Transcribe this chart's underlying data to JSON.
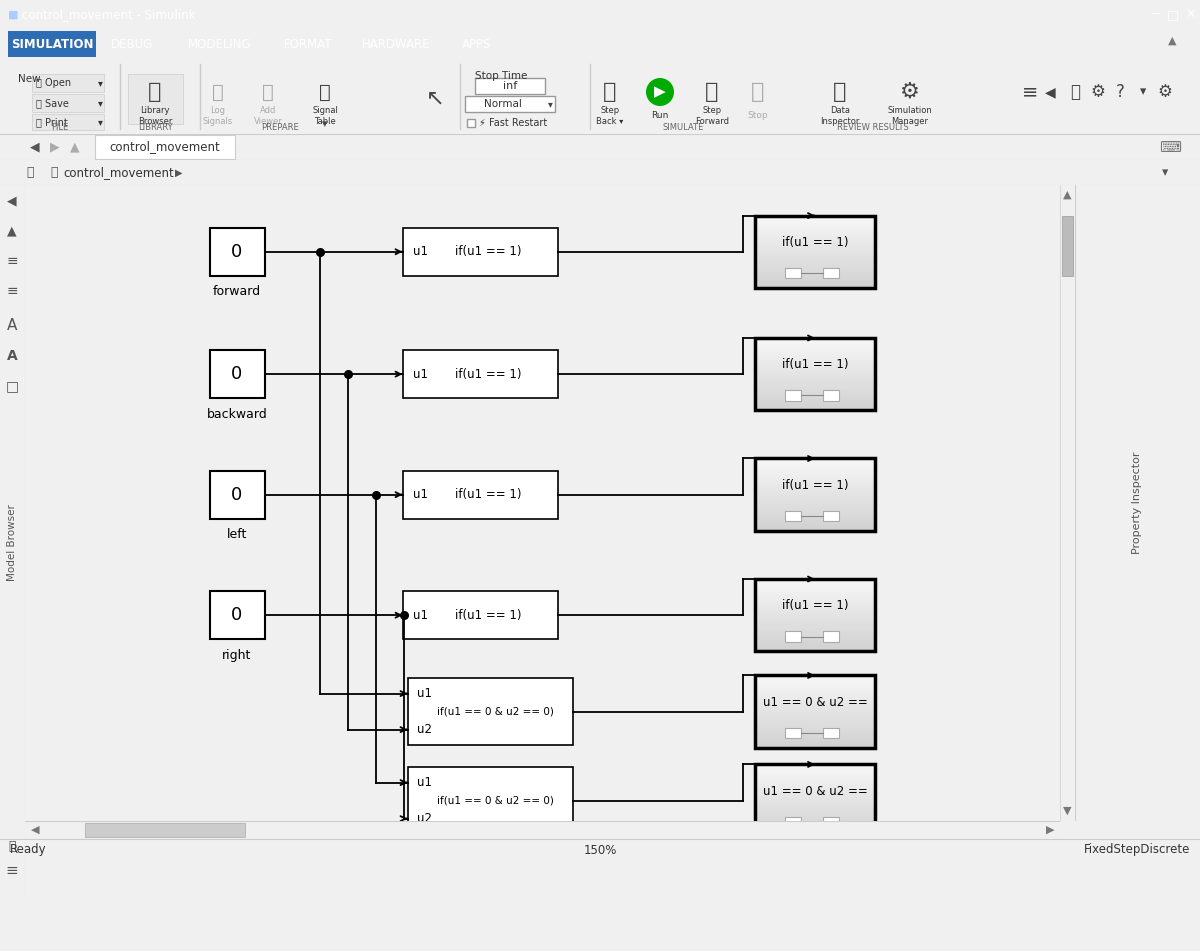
{
  "window_title": "control_movement - Simulink",
  "tab_items": [
    "SIMULATION",
    "DEBUG",
    "MODELING",
    "FORMAT",
    "HARDWARE",
    "APPS"
  ],
  "title_bar_bg": "#1e3a5f",
  "menu_bar_bg": "#1e4d8c",
  "toolbar_bg": "#f0f0f0",
  "diagram_bg": "#ffffff",
  "sidebar_bg": "#e8e8e8",
  "status_left": "Ready",
  "status_center": "150%",
  "status_right": "FixedStepDiscrete",
  "src_labels": [
    "forward",
    "backward",
    "left",
    "right"
  ],
  "sub_labels_1": [
    "if(u1 == 1)",
    "if(u1 == 1)",
    "if(u1 == 1)",
    "if(u1 == 1)"
  ],
  "sub_labels_2": [
    "u1 == 0 & u2 ==",
    "u1 == 0 & u2 =="
  ]
}
